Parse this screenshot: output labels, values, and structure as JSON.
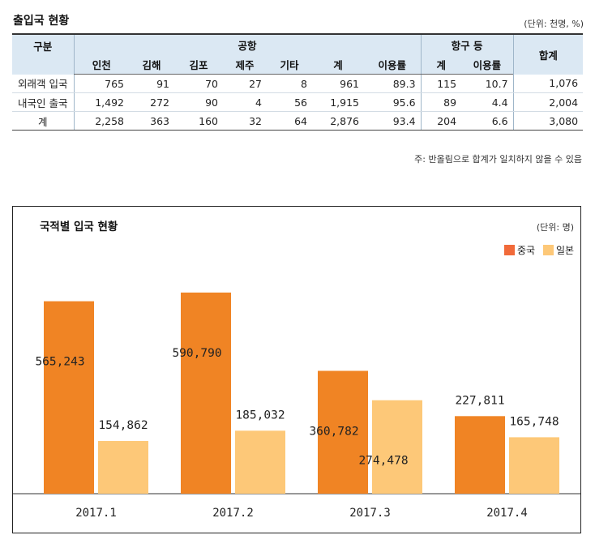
{
  "table": {
    "title": "출입국 현황",
    "unit": "(단위: 천명, %)",
    "header": {
      "category": "구분",
      "airport": "공항",
      "port": "항구 등",
      "total": "합계",
      "cols": [
        "인천",
        "김해",
        "김포",
        "제주",
        "기타",
        "계",
        "이용률",
        "계",
        "이용률"
      ]
    },
    "rows": [
      {
        "label": "외래객 입국",
        "cells": [
          "765",
          "91",
          "70",
          "27",
          "8",
          "961",
          "89.3",
          "115",
          "10.7",
          "1,076"
        ]
      },
      {
        "label": "내국인 출국",
        "cells": [
          "1,492",
          "272",
          "90",
          "4",
          "56",
          "1,915",
          "95.6",
          "89",
          "4.4",
          "2,004"
        ]
      },
      {
        "label": "계",
        "cells": [
          "2,258",
          "363",
          "160",
          "32",
          "64",
          "2,876",
          "93.4",
          "204",
          "6.6",
          "3,080"
        ]
      }
    ],
    "note": "주: 반올림으로 합계가 일치하지 않을 수 있음"
  },
  "chart_data": {
    "type": "bar",
    "title": "국적별 입국 현황",
    "unit": "(단위: 명)",
    "categories": [
      "2017.1",
      "2017.2",
      "2017.3",
      "2017.4"
    ],
    "series": [
      {
        "name": "중국",
        "color": "#f08424",
        "values": [
          565243,
          590790,
          360782,
          227811
        ],
        "labels": [
          "565,243",
          "590,790",
          "360,782",
          "227,811"
        ]
      },
      {
        "name": "일본",
        "color": "#fdc878",
        "values": [
          154862,
          185032,
          274478,
          165748
        ],
        "labels": [
          "154,862",
          "185,032",
          "274,478",
          "165,748"
        ]
      }
    ],
    "ylim": [
      0,
      600000
    ],
    "legend": "top-right",
    "grid": false
  }
}
